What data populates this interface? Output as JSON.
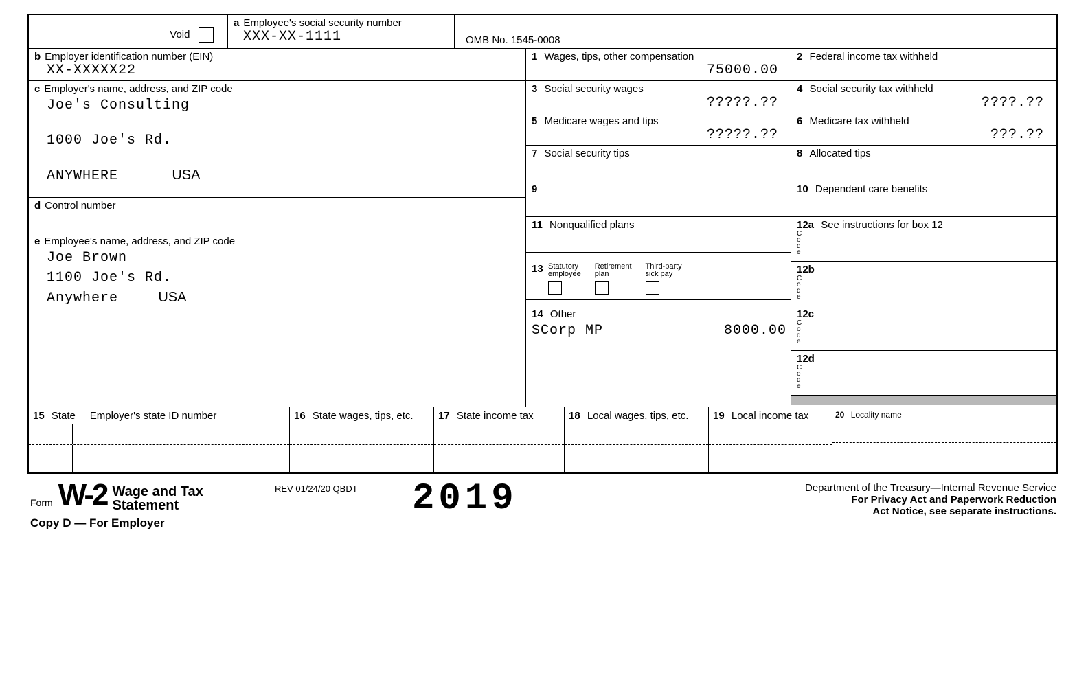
{
  "header": {
    "void_label": "Void",
    "box_a_label": "Employee's social security number",
    "box_a_letter": "a",
    "ssn": "XXX-XX-1111",
    "omb": "OMB No. 1545-0008"
  },
  "box_b": {
    "letter": "b",
    "label": "Employer identification number (EIN)",
    "value": "XX-XXXXX22"
  },
  "box_c": {
    "letter": "c",
    "label": "Employer's name, address, and ZIP code",
    "line1": "Joe's Consulting",
    "line2": "1000 Joe's Rd.",
    "city": "ANYWHERE",
    "state": "USA"
  },
  "box_d": {
    "letter": "d",
    "label": "Control number"
  },
  "box_e": {
    "letter": "e",
    "label": "Employee's name, address, and ZIP code",
    "name": "Joe Brown",
    "addr": "1100 Joe's Rd.",
    "city": "Anywhere",
    "state": "USA"
  },
  "box1": {
    "num": "1",
    "label": "Wages, tips, other compensation",
    "value": "75000.00"
  },
  "box2": {
    "num": "2",
    "label": "Federal income tax withheld",
    "value": ""
  },
  "box3": {
    "num": "3",
    "label": "Social security wages",
    "value": "?????.??"
  },
  "box4": {
    "num": "4",
    "label": "Social security tax withheld",
    "value": "????.??"
  },
  "box5": {
    "num": "5",
    "label": "Medicare wages and tips",
    "value": "?????.??"
  },
  "box6": {
    "num": "6",
    "label": "Medicare tax withheld",
    "value": "???.??"
  },
  "box7": {
    "num": "7",
    "label": "Social security tips",
    "value": ""
  },
  "box8": {
    "num": "8",
    "label": "Allocated tips",
    "value": ""
  },
  "box9": {
    "num": "9",
    "label": "",
    "value": ""
  },
  "box10": {
    "num": "10",
    "label": "Dependent care benefits",
    "value": ""
  },
  "box11": {
    "num": "11",
    "label": "Nonqualified plans",
    "value": ""
  },
  "box12a": {
    "num": "12a",
    "label": "See instructions for box 12"
  },
  "box12b": {
    "num": "12b"
  },
  "box12c": {
    "num": "12c"
  },
  "box12d": {
    "num": "12d"
  },
  "box13": {
    "num": "13",
    "opt1": "Statutory employee",
    "opt2": "Retirement plan",
    "opt3": "Third-party sick pay"
  },
  "box14": {
    "num": "14",
    "label": "Other",
    "line1": "SCorp MP",
    "line1_val": "8000.00"
  },
  "box15": {
    "num": "15",
    "label_a": "State",
    "label_b": "Employer's state ID number"
  },
  "box16": {
    "num": "16",
    "label": "State wages, tips, etc."
  },
  "box17": {
    "num": "17",
    "label": "State income tax"
  },
  "box18": {
    "num": "18",
    "label": "Local wages, tips, etc."
  },
  "box19": {
    "num": "19",
    "label": "Local income tax"
  },
  "box20": {
    "num": "20",
    "label": "Locality name"
  },
  "footer": {
    "form_word": "Form",
    "form_num": "W-2",
    "title1": "Wage and Tax",
    "title2": "Statement",
    "rev": "REV 01/24/20 QBDT",
    "year": "2019",
    "dept": "Department of the Treasury—Internal Revenue Service",
    "privacy1": "For Privacy Act and Paperwork Reduction",
    "privacy2": "Act Notice, see separate instructions.",
    "copy": "Copy D — For Employer"
  },
  "code_label": "C\no\nd\ne"
}
